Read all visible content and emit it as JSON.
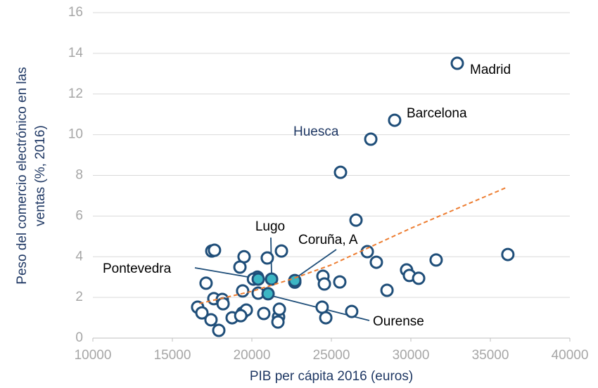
{
  "chart_data": {
    "type": "scatter",
    "xlabel": "PIB per cápita 2016 (euros)",
    "ylabel": [
      "Peso del comercio electrónico en las",
      "ventas (%, 2016)"
    ],
    "xlim": [
      10000,
      40000
    ],
    "xticks": [
      10000,
      15000,
      20000,
      25000,
      30000,
      35000,
      40000
    ],
    "ylim": [
      0,
      16
    ],
    "yticks": [
      0,
      2,
      4,
      6,
      8,
      10,
      12,
      14,
      16
    ],
    "grid": true,
    "series": [
      {
        "color": "#1f4e79",
        "fill": "#ffffff",
        "x": [
          32920,
          28980,
          27480,
          25575,
          26550,
          36100,
          27260,
          27830,
          29730,
          29910,
          30490,
          31590,
          28500,
          26280,
          25530,
          24470,
          24560,
          24420,
          24650,
          22700,
          21860,
          20970,
          19510,
          19250,
          17480,
          17650,
          20350,
          20400,
          19420,
          17120,
          17610,
          18140,
          18190,
          16590,
          16860,
          17430,
          17920,
          18760,
          19420,
          19650,
          20750,
          21680,
          21730,
          21640,
          19300,
          20100
        ],
        "values": [
          13.51,
          10.71,
          9.78,
          8.15,
          5.8,
          4.11,
          4.25,
          3.73,
          3.35,
          3.08,
          2.94,
          3.84,
          2.35,
          1.31,
          2.76,
          3.04,
          2.66,
          1.52,
          1.0,
          2.75,
          4.28,
          3.94,
          4.0,
          3.49,
          4.28,
          4.32,
          3.0,
          2.21,
          2.32,
          2.7,
          1.94,
          1.9,
          1.69,
          1.52,
          1.24,
          0.9,
          0.38,
          1.0,
          1.24,
          1.38,
          1.21,
          1.04,
          1.42,
          0.79,
          1.1,
          2.9
        ]
      },
      {
        "color": "#1f4e79",
        "fill": "#3cb6c4",
        "x": [
          20400,
          21240,
          21020,
          22700
        ],
        "values": [
          2.9,
          2.9,
          2.18,
          2.83
        ]
      }
    ],
    "trendline": {
      "color": "#ed7d31",
      "x": [
        16700,
        20000,
        22500,
        25000,
        27500,
        30000,
        33000,
        36000
      ],
      "values": [
        1.7,
        2.3,
        2.9,
        3.6,
        4.5,
        5.4,
        6.4,
        7.4
      ]
    },
    "annotations": [
      "Madrid",
      "Barcelona",
      "Huesca",
      "Lugo",
      "Coruña, A",
      "Pontevedra",
      "Ourense"
    ]
  }
}
